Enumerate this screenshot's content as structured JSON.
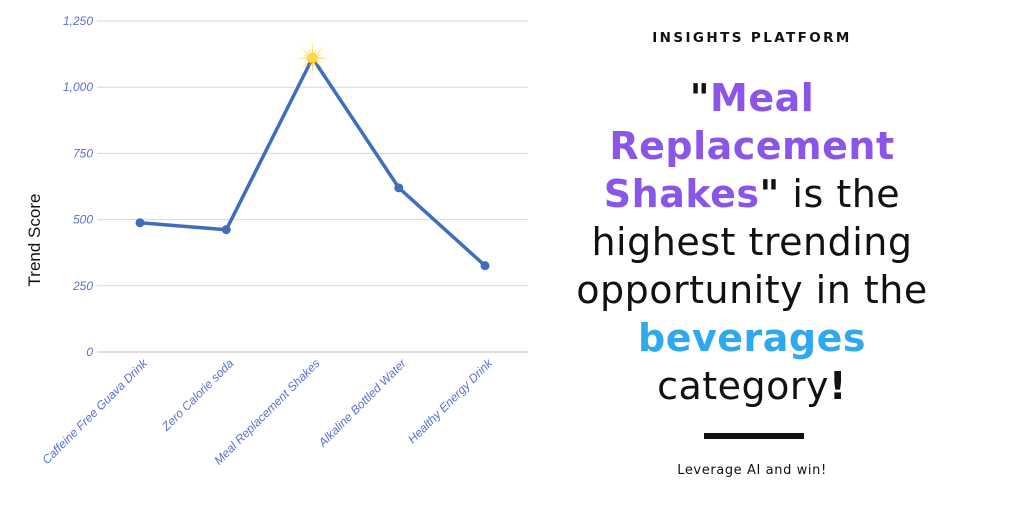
{
  "chart_data": {
    "type": "line",
    "categories": [
      "Caffeine Free Guava Drink",
      "Zero Calorie soda",
      "Meal Replacement Shakes",
      "Alkaline Bottled Water",
      "Healthy Energy Drink"
    ],
    "values": [
      488,
      462,
      1110,
      620,
      326
    ],
    "yticks": [
      "0",
      "250",
      "500",
      "750",
      "1,000",
      "1,250"
    ],
    "ylabel": "Trend Score",
    "ylim": [
      0,
      1250
    ],
    "grid": true,
    "highlight_index": 2,
    "line_color": "#3f6ec0",
    "tick_color": "#5b6fd6",
    "grid_color": "#d9d9d9",
    "highlight_color": "#f5c518"
  },
  "panel": {
    "brand": "INSIGHTS PLATFORM",
    "headline": {
      "open_quote": "\"",
      "highlight1": "Meal Replacement Shakes",
      "close_quote": "\"",
      "text1": " is the highest trending opportunity in the ",
      "highlight2": "beverages",
      "text2": " category",
      "exclaim": "!"
    },
    "tagline": "Leverage AI and win!",
    "colors": {
      "highlight1": "#8a56e8",
      "highlight2": "#2fa8f0"
    }
  }
}
